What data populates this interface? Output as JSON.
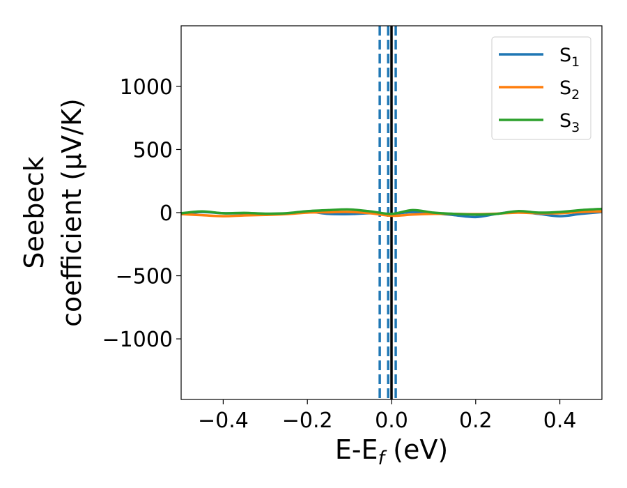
{
  "chart_data": {
    "type": "line",
    "xlabel": "E-E",
    "xlabel_sub": "f",
    "xlabel_unit": " (eV)",
    "ylabel_line1": "Seebeck",
    "ylabel_line2": "coefficient  (μV/K)",
    "xlim": [
      -0.5,
      0.5
    ],
    "ylim": [
      -1480,
      1480
    ],
    "xticks": [
      -0.4,
      -0.2,
      0.0,
      0.2,
      0.4
    ],
    "xtick_labels": [
      "−0.4",
      "−0.2",
      "0.0",
      "0.2",
      "0.4"
    ],
    "yticks": [
      -1000,
      -500,
      0,
      500,
      1000
    ],
    "ytick_labels": [
      "−1000",
      "−500",
      "0",
      "500",
      "1000"
    ],
    "legend_position": "top-right",
    "fermi_line": {
      "x": 0.0,
      "color": "#000000",
      "style": "solid"
    },
    "dashed_lines": [
      {
        "x": -0.028,
        "color": "#1f77b4"
      },
      {
        "x": -0.008,
        "color": "#1f77b4"
      },
      {
        "x": 0.01,
        "color": "#1f77b4"
      }
    ],
    "x": [
      -0.5,
      -0.45,
      -0.4,
      -0.35,
      -0.3,
      -0.25,
      -0.2,
      -0.15,
      -0.1,
      -0.05,
      0.0,
      0.05,
      0.1,
      0.15,
      0.2,
      0.25,
      0.3,
      0.35,
      0.4,
      0.45,
      0.5
    ],
    "series": [
      {
        "name": "S",
        "sub": "1",
        "color": "#1f77b4",
        "values": [
          -10,
          5,
          -5,
          -5,
          -10,
          -8,
          8,
          -10,
          -12,
          -5,
          -10,
          5,
          -5,
          -20,
          -35,
          -10,
          8,
          -10,
          -28,
          -10,
          5
        ]
      },
      {
        "name": "S",
        "sub": "2",
        "color": "#ff7f0e",
        "values": [
          -12,
          -20,
          -28,
          -22,
          -18,
          -12,
          0,
          3,
          5,
          -5,
          -25,
          -15,
          -10,
          -10,
          -12,
          -8,
          0,
          -5,
          -5,
          5,
          10
        ]
      },
      {
        "name": "S",
        "sub": "3",
        "color": "#2ca02c",
        "values": [
          -5,
          10,
          -5,
          -2,
          -8,
          -5,
          12,
          20,
          25,
          10,
          -10,
          20,
          0,
          -10,
          -15,
          -10,
          12,
          0,
          5,
          20,
          30
        ]
      }
    ]
  }
}
